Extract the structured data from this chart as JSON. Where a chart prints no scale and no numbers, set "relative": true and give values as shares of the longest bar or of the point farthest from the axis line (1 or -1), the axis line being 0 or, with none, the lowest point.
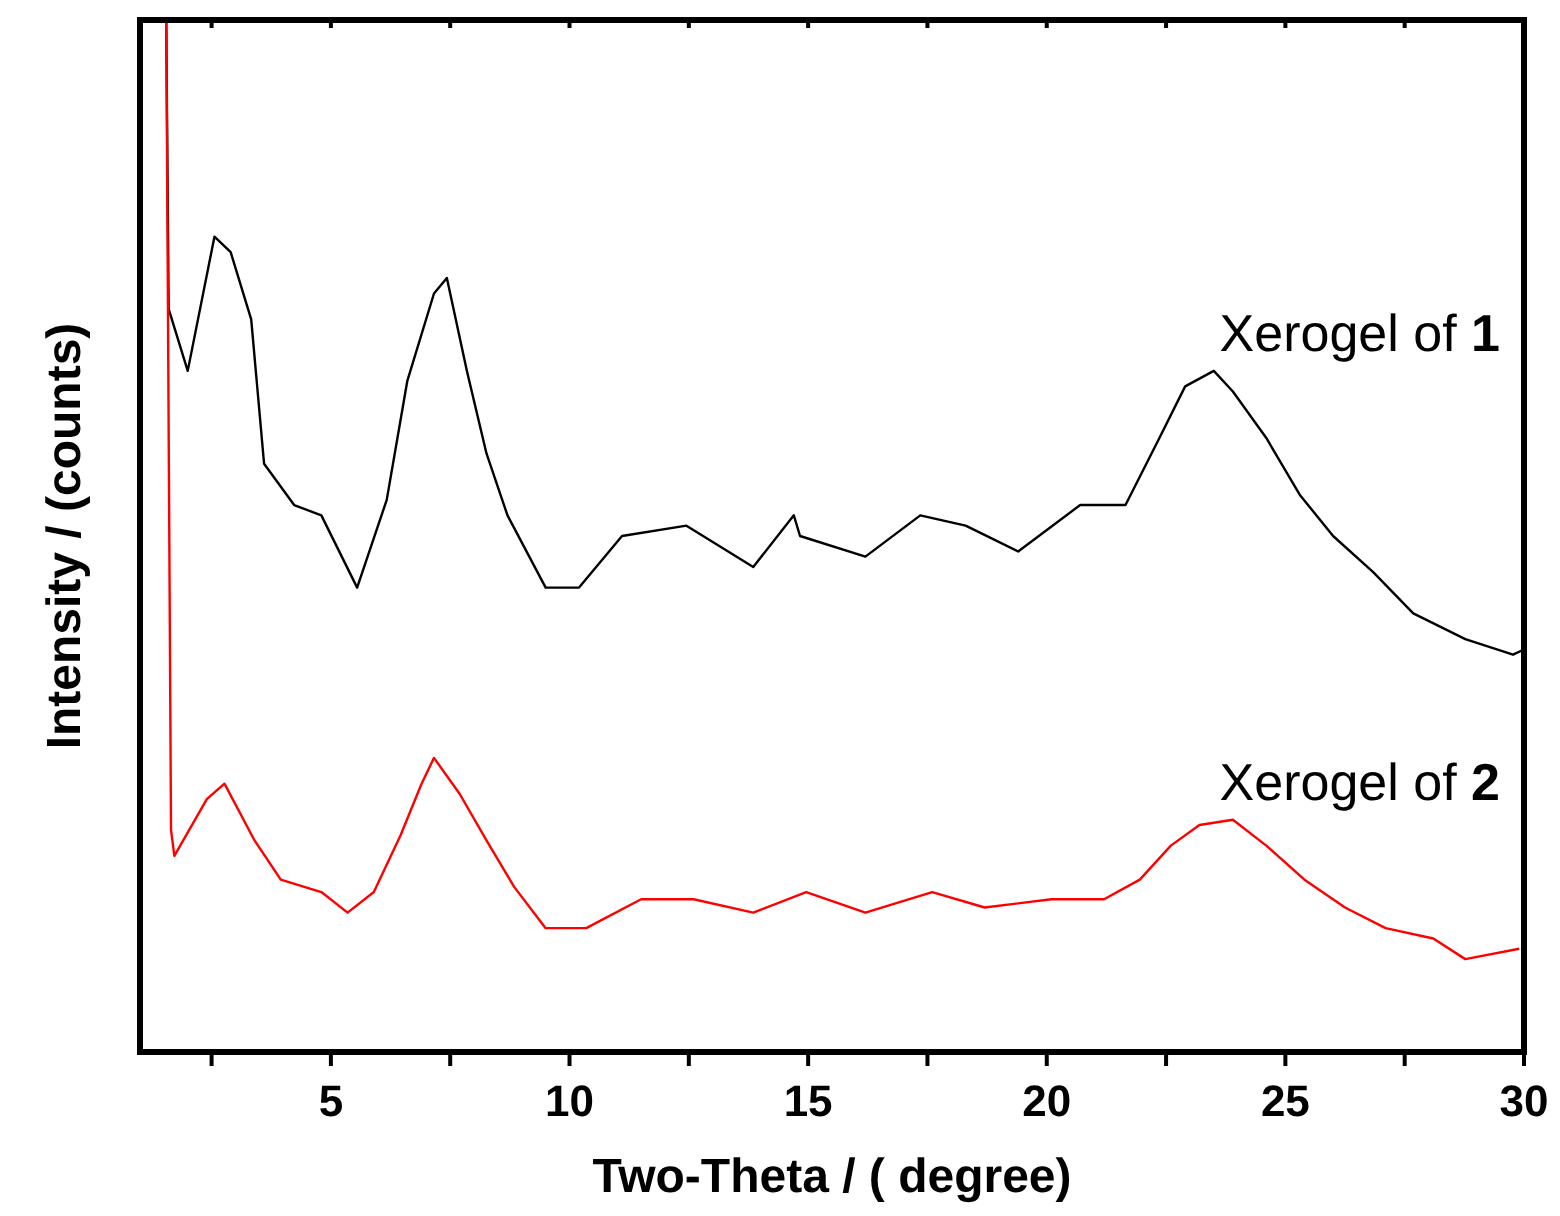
{
  "chart_data": {
    "type": "line",
    "relative": true,
    "xlabel": "Two-Theta / ( degree)",
    "ylabel": "Intensity / (counts)",
    "xlim": [
      1,
      30
    ],
    "xticks": [
      {
        "value": 2.5,
        "label": null
      },
      5,
      {
        "value": 7.5,
        "label": null
      },
      10,
      {
        "value": 12.5,
        "label": null
      },
      15,
      {
        "value": 17.5,
        "label": null
      },
      20,
      {
        "value": 22.5,
        "label": null
      },
      25,
      {
        "value": 27.5,
        "label": null
      },
      30
    ],
    "legend": false,
    "marker": "none",
    "line_style": "solid",
    "grid": false,
    "series": [
      {
        "name": "Xerogel of 1",
        "color": "#000000",
        "x": [
          1.55,
          1.6,
          2.0,
          2.56,
          2.9,
          3.33,
          3.6,
          4.23,
          4.8,
          5.55,
          6.17,
          6.6,
          7.16,
          7.43,
          7.85,
          8.26,
          8.7,
          9.5,
          10.2,
          11.1,
          12.45,
          13.85,
          14.7,
          14.83,
          16.2,
          17.35,
          18.3,
          19.4,
          20.7,
          21.65,
          22.36,
          22.9,
          23.5,
          23.9,
          24.6,
          25.3,
          26.0,
          26.84,
          27.68,
          28.77,
          29.77,
          30
        ],
        "values": [
          1.0,
          0.72,
          0.66,
          0.79,
          0.775,
          0.71,
          0.57,
          0.53,
          0.52,
          0.45,
          0.535,
          0.65,
          0.735,
          0.75,
          0.66,
          0.58,
          0.52,
          0.45,
          0.45,
          0.5,
          0.51,
          0.47,
          0.52,
          0.5,
          0.48,
          0.52,
          0.51,
          0.485,
          0.53,
          0.53,
          0.595,
          0.645,
          0.66,
          0.64,
          0.595,
          0.54,
          0.5,
          0.465,
          0.425,
          0.4,
          0.385,
          0.39
        ]
      },
      {
        "name": "Xerogel of 2",
        "color": "#ff0000",
        "x": [
          1.55,
          1.65,
          1.72,
          2.4,
          2.77,
          3.4,
          3.95,
          4.8,
          5.35,
          5.9,
          6.46,
          6.9,
          7.16,
          7.7,
          8.26,
          8.84,
          9.5,
          10.35,
          11.5,
          12.6,
          13.85,
          14.96,
          16.2,
          17.6,
          18.7,
          20.1,
          21.2,
          21.95,
          22.6,
          23.2,
          23.9,
          24.6,
          25.4,
          26.25,
          27.1,
          28.1,
          28.77,
          29.9
        ],
        "values": [
          1.0,
          0.215,
          0.19,
          0.245,
          0.26,
          0.205,
          0.167,
          0.155,
          0.135,
          0.155,
          0.21,
          0.26,
          0.285,
          0.25,
          0.205,
          0.16,
          0.12,
          0.12,
          0.148,
          0.148,
          0.135,
          0.155,
          0.135,
          0.155,
          0.14,
          0.148,
          0.148,
          0.167,
          0.2,
          0.22,
          0.225,
          0.2,
          0.167,
          0.14,
          0.12,
          0.11,
          0.09,
          0.1
        ]
      }
    ]
  }
}
